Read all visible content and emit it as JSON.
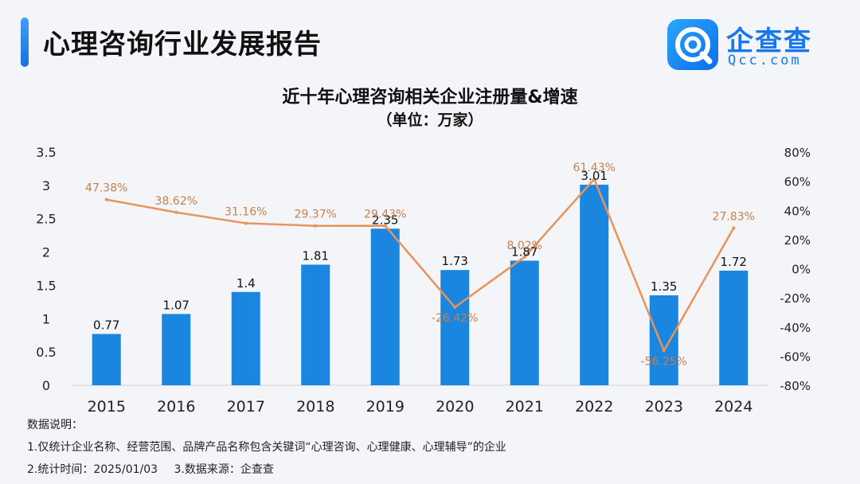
{
  "header": {
    "title": "心理咨询行业发展报告",
    "logo_name": "企查查",
    "logo_domain": "Qcc.com",
    "accent_color": "#1a7ee8"
  },
  "chart_data": {
    "type": "bar+line",
    "title": "近十年心理咨询相关企业注册量&增速",
    "subtitle": "（单位：万家）",
    "categories": [
      "2015",
      "2016",
      "2017",
      "2018",
      "2019",
      "2020",
      "2021",
      "2022",
      "2023",
      "2024"
    ],
    "series": [
      {
        "name": "注册量",
        "type": "bar",
        "axis": "left",
        "color": "#1b86e0",
        "values": [
          0.77,
          1.07,
          1.4,
          1.81,
          2.35,
          1.73,
          1.87,
          3.01,
          1.35,
          1.72
        ],
        "labels": [
          "0.77",
          "1.07",
          "1.4",
          "1.81",
          "2.35",
          "1.73",
          "1.87",
          "3.01",
          "1.35",
          "1.72"
        ]
      },
      {
        "name": "增速",
        "type": "line",
        "axis": "right",
        "color": "#e8935a",
        "label_color": "#c7804d",
        "values": [
          47.38,
          38.62,
          31.16,
          29.37,
          29.43,
          -26.42,
          8.02,
          61.43,
          -56.25,
          27.83
        ],
        "labels": [
          "47.38%",
          "38.62%",
          "31.16%",
          "29.37%",
          "29.43%",
          "-26.42%",
          "8.02%",
          "61.43%",
          "-56.25%",
          "27.83%"
        ]
      }
    ],
    "left_axis": {
      "ylim": [
        0,
        3.5
      ],
      "ticks": [
        0,
        0.5,
        1,
        1.5,
        2,
        2.5,
        3,
        3.5
      ],
      "tick_labels": [
        "0",
        "0.5",
        "1",
        "1.5",
        "2",
        "2.5",
        "3",
        "3.5"
      ]
    },
    "right_axis": {
      "ylim": [
        -80,
        80
      ],
      "ticks": [
        -80,
        -60,
        -40,
        -20,
        0,
        20,
        40,
        60,
        80
      ],
      "tick_labels": [
        "-80%",
        "-60%",
        "-40%",
        "-20%",
        "0%",
        "20%",
        "40%",
        "60%",
        "80%"
      ]
    },
    "grid": false
  },
  "notes": {
    "heading": "数据说明：",
    "line1": "1.仅统计企业名称、经营范围、品牌产品名称包含关键词“心理咨询、心理健康、心理辅导”的企业",
    "time": "2.统计时间：2025/01/03",
    "source": "3.数据来源：企查查"
  }
}
